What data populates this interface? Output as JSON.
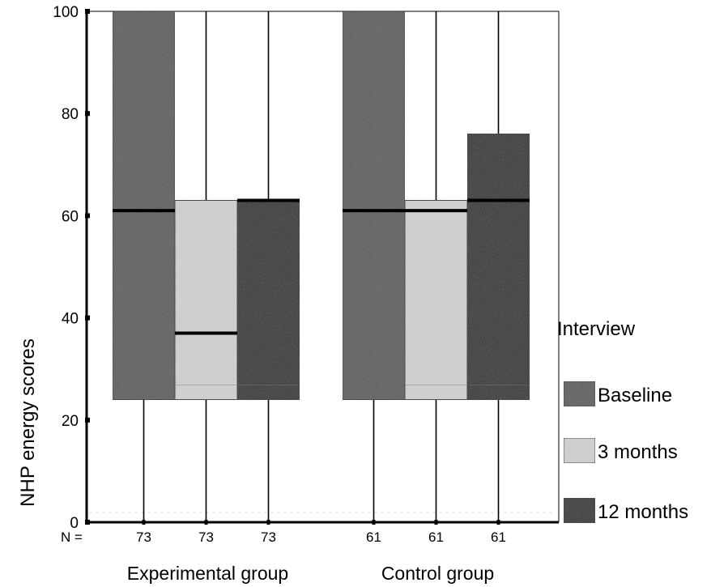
{
  "chart_data": {
    "type": "boxplot",
    "ylabel": "NHP energy scores",
    "ylim": [
      0,
      100
    ],
    "y_ticks": [
      0,
      20,
      40,
      60,
      80,
      100
    ],
    "n_prefix": "N =",
    "groups": [
      {
        "name": "Experimental group",
        "boxes": [
          {
            "series": "Baseline",
            "n": "73",
            "min": 0,
            "q1": 24,
            "median": 61,
            "q3": 100,
            "max": 100
          },
          {
            "series": "3 months",
            "n": "73",
            "min": 0,
            "q1": 24,
            "median": 37,
            "q3": 63,
            "max": 100
          },
          {
            "series": "12 months",
            "n": "73",
            "min": 0,
            "q1": 24,
            "median": 63,
            "q3": 63,
            "max": 100
          }
        ]
      },
      {
        "name": "Control group",
        "boxes": [
          {
            "series": "Baseline",
            "n": "61",
            "min": 0,
            "q1": 24,
            "median": 61,
            "q3": 100,
            "max": 100
          },
          {
            "series": "3 months",
            "n": "61",
            "min": 0,
            "q1": 24,
            "median": 61,
            "q3": 63,
            "max": 100
          },
          {
            "series": "12 months",
            "n": "61",
            "min": 0,
            "q1": 24,
            "median": 63,
            "q3": 76,
            "max": 100
          }
        ]
      }
    ],
    "legend": {
      "title": "Interview",
      "placement": "right",
      "entries": [
        {
          "label": "Baseline",
          "color": "#545454"
        },
        {
          "label": "3 months",
          "color": "#d2d2d2"
        },
        {
          "label": "12 months",
          "color": "#151515"
        }
      ]
    }
  }
}
